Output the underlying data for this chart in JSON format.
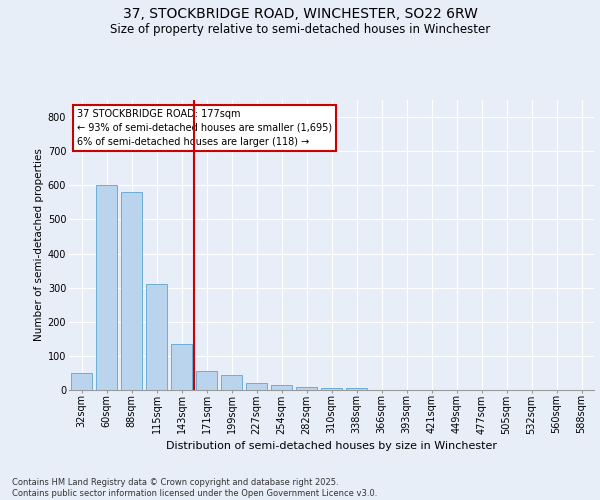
{
  "title_line1": "37, STOCKBRIDGE ROAD, WINCHESTER, SO22 6RW",
  "title_line2": "Size of property relative to semi-detached houses in Winchester",
  "xlabel": "Distribution of semi-detached houses by size in Winchester",
  "ylabel": "Number of semi-detached properties",
  "categories": [
    "32sqm",
    "60sqm",
    "88sqm",
    "115sqm",
    "143sqm",
    "171sqm",
    "199sqm",
    "227sqm",
    "254sqm",
    "282sqm",
    "310sqm",
    "338sqm",
    "366sqm",
    "393sqm",
    "421sqm",
    "449sqm",
    "477sqm",
    "505sqm",
    "532sqm",
    "560sqm",
    "588sqm"
  ],
  "values": [
    50,
    600,
    580,
    310,
    135,
    55,
    45,
    20,
    15,
    10,
    5,
    5,
    0,
    0,
    0,
    0,
    0,
    0,
    0,
    0,
    0
  ],
  "bar_color": "#bad4ed",
  "bar_edge_color": "#6aaed6",
  "vline_x": 4.5,
  "vline_color": "#cc0000",
  "annotation_title": "37 STOCKBRIDGE ROAD: 177sqm",
  "annotation_smaller": "← 93% of semi-detached houses are smaller (1,695)",
  "annotation_larger": "6% of semi-detached houses are larger (118) →",
  "annotation_box_facecolor": "#ffffff",
  "annotation_box_edgecolor": "#cc0000",
  "background_color": "#e8eef8",
  "grid_color": "#ffffff",
  "ylim": [
    0,
    850
  ],
  "yticks": [
    0,
    100,
    200,
    300,
    400,
    500,
    600,
    700,
    800
  ],
  "title1_fontsize": 10,
  "title2_fontsize": 8.5,
  "xlabel_fontsize": 8,
  "ylabel_fontsize": 7.5,
  "tick_fontsize": 7,
  "footer_line1": "Contains HM Land Registry data © Crown copyright and database right 2025.",
  "footer_line2": "Contains public sector information licensed under the Open Government Licence v3.0."
}
